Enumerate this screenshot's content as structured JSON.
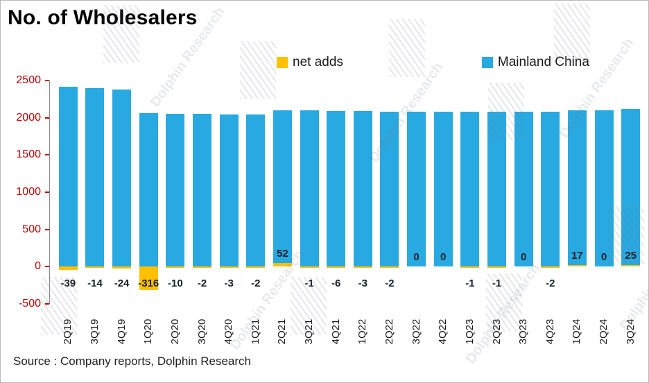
{
  "title": "No. of Wholesalers",
  "source": "Source : Company reports, Dolphin Research",
  "watermark_text": "Dolphin Research",
  "colors": {
    "net_adds": "#FFC000",
    "mainland_china": "#29A9E1",
    "y_axis_label": "#C00000",
    "axis_line": "#8A8A8A",
    "value_label": "#17202A"
  },
  "chart_data": {
    "type": "bar",
    "categories": [
      "2Q19",
      "3Q19",
      "4Q19",
      "1Q20",
      "2Q20",
      "3Q20",
      "4Q20",
      "1Q21",
      "2Q21",
      "3Q21",
      "4Q21",
      "1Q22",
      "2Q22",
      "3Q22",
      "4Q22",
      "1Q23",
      "2Q23",
      "3Q23",
      "4Q23",
      "1Q24",
      "2Q24",
      "3Q24"
    ],
    "series": [
      {
        "name": "net adds",
        "color": "#FFC000",
        "values": [
          -39,
          -14,
          -24,
          -316,
          -10,
          -2,
          -3,
          -2,
          52,
          -1,
          -6,
          -3,
          -2,
          0,
          0,
          -1,
          -1,
          0,
          -2,
          17,
          0,
          25
        ],
        "labels_shown": true
      },
      {
        "name": "Mainland China",
        "color": "#29A9E1",
        "values": [
          2415,
          2401,
          2377,
          2061,
          2051,
          2049,
          2046,
          2044,
          2096,
          2095,
          2089,
          2086,
          2084,
          2084,
          2084,
          2083,
          2082,
          2082,
          2080,
          2097,
          2097,
          2122
        ],
        "labels_shown": false
      }
    ],
    "ylim": [
      -500,
      2500
    ],
    "yticks": [
      2500,
      2000,
      1500,
      1000,
      500,
      0,
      -500
    ],
    "grid": false,
    "legend_position": "top",
    "bars_overlap": true,
    "x_labels_rotated_deg": 90
  }
}
